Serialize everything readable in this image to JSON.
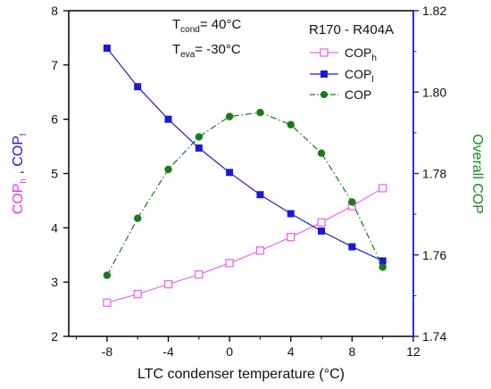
{
  "chart_data": {
    "type": "line",
    "xlabel_main": "LTC condenser temperature (",
    "xlabel_unit": "°C)",
    "x_ticks": [
      "-8",
      "-4",
      "0",
      "4",
      "8",
      "12"
    ],
    "x_tick_values": [
      -8,
      -4,
      0,
      4,
      8,
      12
    ],
    "xlim": [
      -10.5,
      12
    ],
    "ylim_left": [
      2,
      8
    ],
    "ylim_right": [
      1.74,
      1.82
    ],
    "y_left_ticks": [
      "2",
      "3",
      "4",
      "5",
      "6",
      "7",
      "8"
    ],
    "y_left_tick_values": [
      2,
      3,
      4,
      5,
      6,
      7,
      8
    ],
    "y_right_ticks": [
      "1.74",
      "1.76",
      "1.78",
      "1.80",
      "1.82"
    ],
    "y_right_tick_values": [
      1.74,
      1.76,
      1.78,
      1.8,
      1.82
    ],
    "ylabel_left": {
      "part1": "COP",
      "part1_sub": "h",
      "sep": " , ",
      "part2": "COP",
      "part2_sub": "l"
    },
    "ylabel_right": "Overall COP",
    "annotations": {
      "tcond_prefix": "T",
      "tcond_sub": "cond",
      "tcond_value": "= 40°C",
      "teva_prefix": "T",
      "teva_sub": "eva",
      "teva_value": "= -30°C",
      "refrigerant_pair": "R170 - R404A"
    },
    "colors": {
      "axis_left": "#000000",
      "axis_right": "#1a1ad6",
      "cop_h": "#ee66ee",
      "cop_l": "#1a1ad6",
      "cop": "#1a7a1a",
      "ylabel_left_h": "#ee33ee",
      "ylabel_left_l": "#1a1ad6",
      "ylabel_right": "#1a8a1a"
    },
    "series": [
      {
        "name": "COP",
        "name_sub": "h",
        "axis": "left",
        "marker": "open-square",
        "line": "solid",
        "x": [
          -8,
          -6,
          -4,
          -2,
          0,
          2,
          4,
          6,
          8,
          10
        ],
        "y": [
          2.62,
          2.78,
          2.96,
          3.14,
          3.35,
          3.58,
          3.83,
          4.1,
          4.4,
          4.73
        ]
      },
      {
        "name": "COP",
        "name_sub": "l",
        "axis": "left",
        "marker": "filled-square",
        "line": "solid",
        "x": [
          -8,
          -6,
          -4,
          -2,
          0,
          2,
          4,
          6,
          8,
          10
        ],
        "y": [
          7.31,
          6.6,
          6.0,
          5.47,
          5.02,
          4.61,
          4.26,
          3.94,
          3.65,
          3.39
        ]
      },
      {
        "name": "COP",
        "name_sub": "",
        "axis": "right",
        "marker": "filled-circle",
        "line": "dash-dot",
        "x": [
          -8,
          -6,
          -4,
          -2,
          0,
          2,
          4,
          6,
          8,
          10
        ],
        "y": [
          1.755,
          1.769,
          1.781,
          1.789,
          1.794,
          1.795,
          1.792,
          1.785,
          1.773,
          1.757
        ]
      }
    ]
  }
}
